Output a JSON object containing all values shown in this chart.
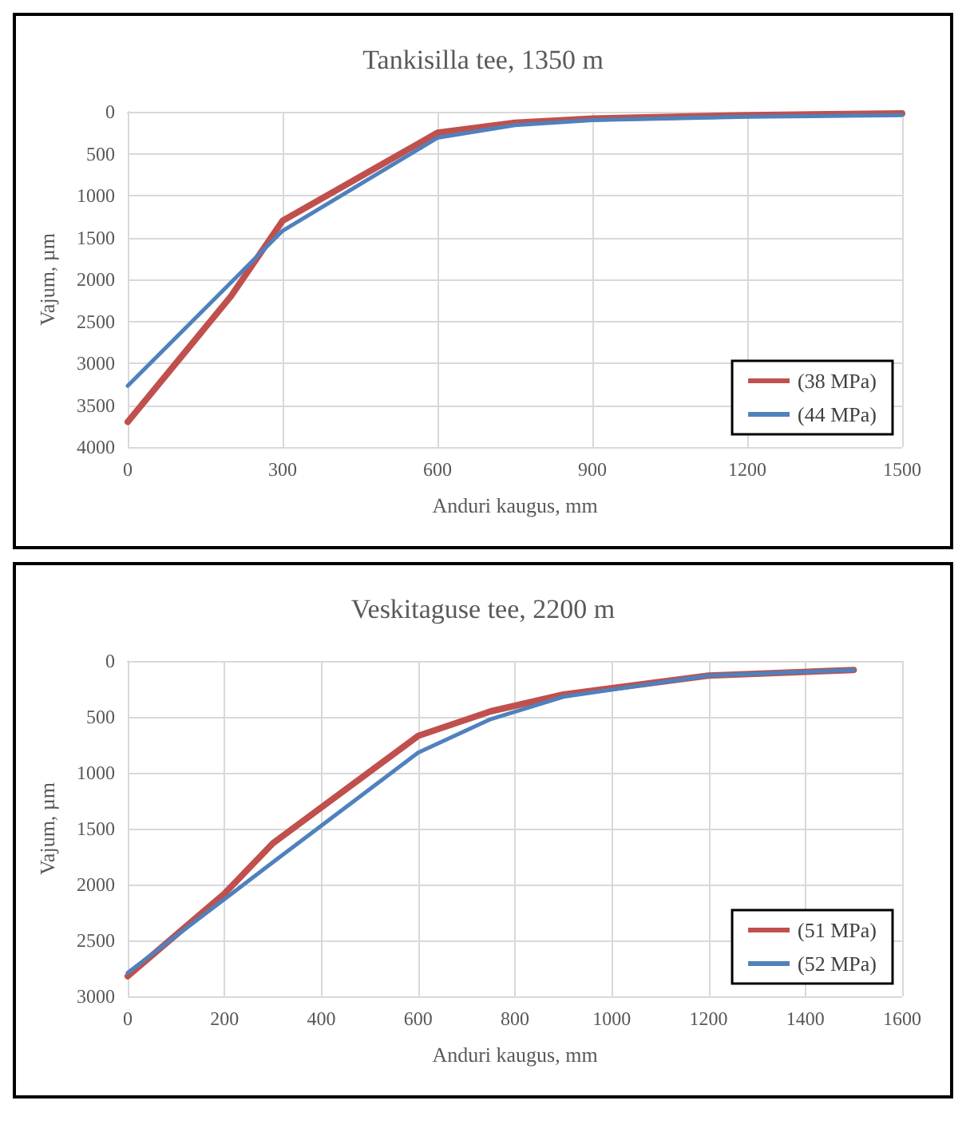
{
  "chart_data": [
    {
      "type": "line",
      "title": "Tankisilla tee, 1350 m",
      "xlabel": "Anduri kaugus, mm",
      "ylabel": "Vajum, µm",
      "xlim": [
        0,
        1500
      ],
      "xticks": [
        0,
        300,
        600,
        900,
        1200,
        1500
      ],
      "ylim": [
        4000,
        0
      ],
      "yticks": [
        0,
        500,
        1000,
        1500,
        2000,
        2500,
        3000,
        3500,
        4000
      ],
      "grid": true,
      "legend": "bottom right",
      "marker": "none",
      "line_style": "solid",
      "series": [
        {
          "name": "(38 MPa)",
          "color": "#c0504d",
          "x": [
            0,
            200,
            300,
            600,
            750,
            900,
            1200,
            1500
          ],
          "values": [
            3700,
            2200,
            1300,
            250,
            130,
            80,
            40,
            20
          ]
        },
        {
          "name": "(44 MPa)",
          "color": "#4f81bd",
          "x": [
            0,
            300,
            600,
            750,
            900,
            1200,
            1500
          ],
          "values": [
            3270,
            1420,
            310,
            160,
            100,
            60,
            40
          ]
        }
      ]
    },
    {
      "type": "line",
      "title": "Veskitaguse tee, 2200 m",
      "xlabel": "Anduri kaugus, mm",
      "ylabel": "Vajum, µm",
      "xlim": [
        0,
        1600
      ],
      "xticks": [
        0,
        200,
        400,
        600,
        800,
        1000,
        1200,
        1400,
        1600
      ],
      "ylim": [
        3000,
        0
      ],
      "yticks": [
        0,
        500,
        1000,
        1500,
        2000,
        2500,
        3000
      ],
      "grid": true,
      "legend": "bottom right",
      "marker": "none",
      "line_style": "solid",
      "series": [
        {
          "name": "(51 MPa)",
          "color": "#c0504d",
          "x": [
            0,
            200,
            300,
            600,
            750,
            900,
            1200,
            1500
          ],
          "values": [
            2820,
            2080,
            1630,
            670,
            450,
            300,
            130,
            80
          ]
        },
        {
          "name": "(52 MPa)",
          "color": "#4f81bd",
          "x": [
            0,
            200,
            300,
            600,
            750,
            900,
            1200,
            1500
          ],
          "values": [
            2790,
            2130,
            1800,
            820,
            520,
            320,
            130,
            80
          ]
        }
      ]
    }
  ]
}
